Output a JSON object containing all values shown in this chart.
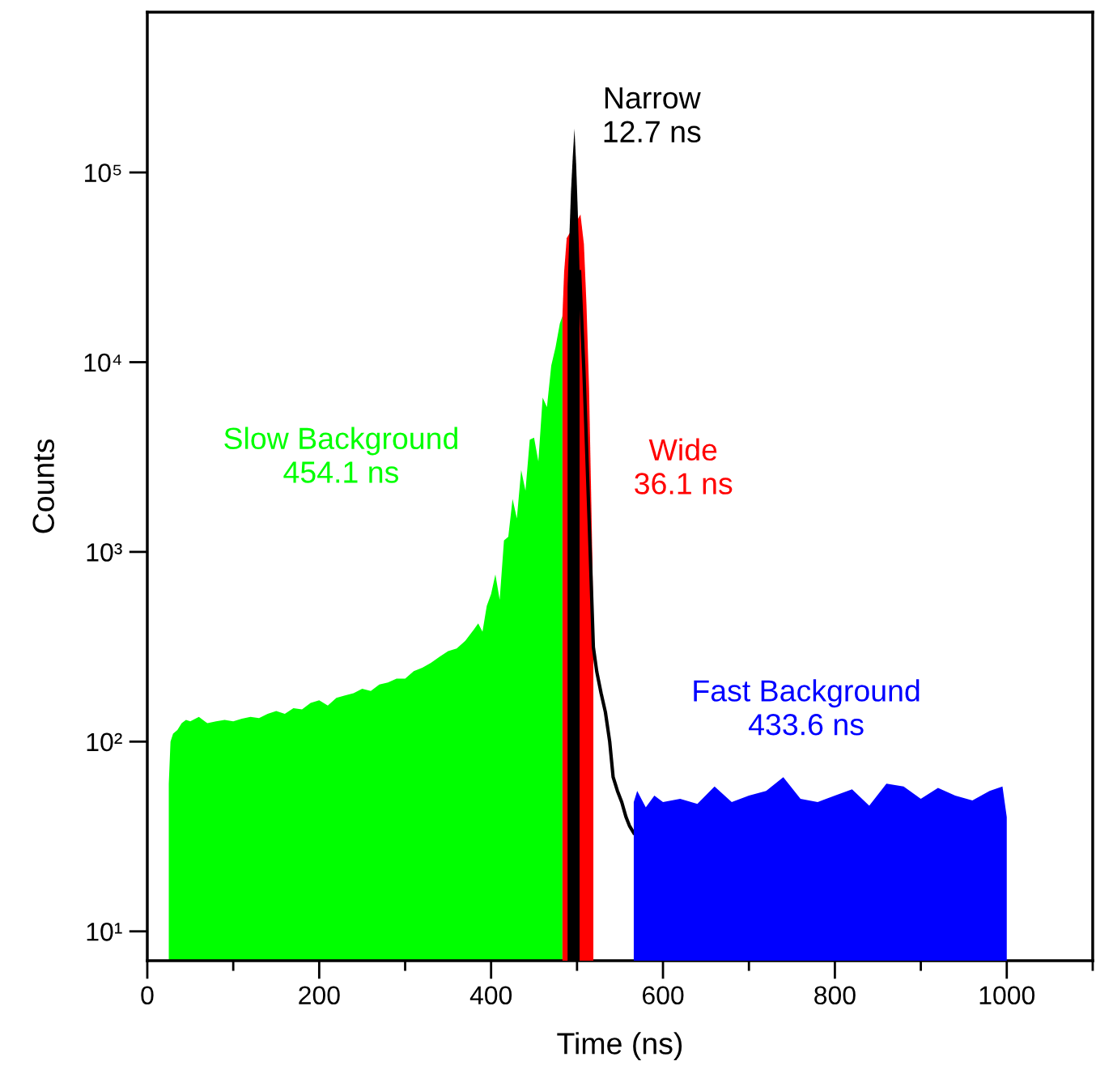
{
  "chart_data": {
    "type": "area",
    "xlabel": "Time (ns)",
    "ylabel": "Counts",
    "log": "y",
    "legend": false,
    "grid": false,
    "xlim": [
      0,
      1100
    ],
    "xticks": [
      0,
      200,
      400,
      600,
      800,
      1000
    ],
    "ylim": [
      7,
      700000
    ],
    "yticks": [
      {
        "value": 10,
        "label": "10¹"
      },
      {
        "value": 100,
        "label": "10²"
      },
      {
        "value": 1000,
        "label": "10³"
      },
      {
        "value": 10000,
        "label": "10⁴"
      },
      {
        "value": 100000,
        "label": "10⁵"
      }
    ],
    "series": [
      {
        "name": "Slow Background\n454.1 ns",
        "color": "#00ff00",
        "x": [
          25,
          27,
          30,
          35,
          40,
          45,
          50,
          60,
          70,
          80,
          90,
          100,
          110,
          120,
          130,
          140,
          150,
          160,
          170,
          180,
          190,
          200,
          210,
          220,
          230,
          240,
          250,
          260,
          270,
          280,
          290,
          300,
          310,
          320,
          330,
          340,
          350,
          360,
          370,
          380,
          385,
          390,
          395,
          400,
          405,
          410,
          415,
          420,
          425,
          430,
          435,
          440,
          445,
          450,
          455,
          460,
          465,
          470,
          475,
          480,
          483
        ],
        "values": [
          60,
          100,
          110,
          115,
          125,
          130,
          128,
          135,
          125,
          128,
          130,
          128,
          132,
          135,
          133,
          140,
          145,
          140,
          150,
          148,
          160,
          165,
          155,
          170,
          175,
          180,
          190,
          185,
          200,
          205,
          215,
          215,
          235,
          245,
          260,
          280,
          300,
          310,
          340,
          390,
          420,
          380,
          520,
          600,
          760,
          560,
          1150,
          1200,
          1900,
          1500,
          2700,
          2100,
          3900,
          4000,
          3000,
          6500,
          5800,
          9600,
          12000,
          16000,
          17500
        ]
      },
      {
        "name": "Wide\n36.1 ns",
        "color": "#ff0000",
        "x": [
          483,
          485,
          488,
          504,
          508,
          511,
          514,
          516,
          518,
          519
        ],
        "values": [
          17500,
          30000,
          45000,
          60000,
          42000,
          20000,
          7300,
          2500,
          840,
          300
        ]
      },
      {
        "name": "Narrow\n12.7 ns",
        "color": "#000000",
        "x": [
          489,
          491,
          493,
          495,
          497,
          499,
          501,
          503
        ],
        "values": [
          25000,
          45000,
          80000,
          120000,
          170000,
          110000,
          60000,
          30000
        ]
      },
      {
        "type": "line",
        "color": "#000000",
        "x": [
          503,
          508,
          514,
          519,
          523,
          528,
          533,
          538,
          542,
          547,
          552,
          557,
          561,
          566
        ],
        "values": [
          30000,
          9000,
          1500,
          315,
          233,
          180,
          143,
          100,
          65,
          55,
          48,
          40,
          36,
          33
        ]
      },
      {
        "name": "Fast Background\n433.6 ns",
        "color": "#0000ff",
        "x": [
          566,
          570,
          580,
          590,
          600,
          620,
          640,
          660,
          680,
          700,
          720,
          740,
          760,
          780,
          800,
          820,
          840,
          860,
          880,
          900,
          920,
          940,
          960,
          980,
          995,
          1000
        ],
        "values": [
          48,
          55,
          45,
          52,
          48,
          50,
          47,
          58,
          48,
          52,
          55,
          65,
          50,
          48,
          52,
          56,
          46,
          60,
          58,
          50,
          57,
          52,
          49,
          55,
          58,
          40
        ]
      }
    ]
  }
}
